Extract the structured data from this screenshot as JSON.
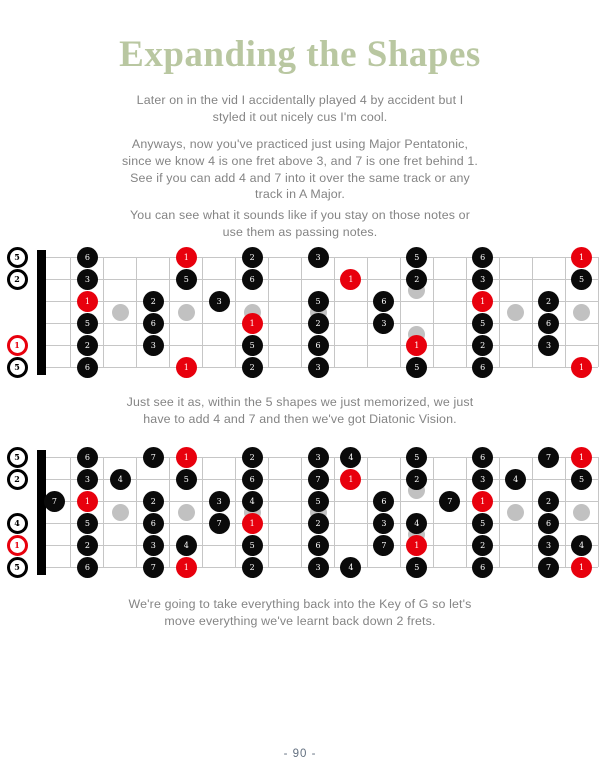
{
  "page": {
    "title": "Expanding the Shapes",
    "paragraphs": [
      "Later on in the vid I accidentally played 4 by accident but I\nstyled it out nicely cus I'm cool.",
      "Anyways, now you've practiced just using Major Pentatonic,\nsince we know 4 is one fret above 3, and 7 is one fret behind 1.\nSee if you can add 4 and 7 into it over the same track or any\ntrack in A Major.",
      "You can see what it sounds like if you stay on those notes or\nuse them as passing notes.",
      "Just see it as, within the 5 shapes we just memorized, we just\nhave to add 4 and 7 and then we've got Diatonic Vision.",
      "We're going to take everything back into the Key of G so let's\nmove everything we've learnt back down 2 frets."
    ],
    "page_number": "- 90 -"
  },
  "colors": {
    "title_green": "#b9c7a1",
    "body_gray": "#848484",
    "note_black": "#0a0a0a",
    "note_red": "#e8000d",
    "inlay_gray": "#c1c1c1",
    "line_gray": "#c6c6c6",
    "page_number_slate": "#637080"
  },
  "fretboards": [
    {
      "name": "A Major Pentatonic across full neck",
      "frets": 17,
      "strings": 6,
      "inlays": [
        [
          3,
          "mid"
        ],
        [
          5,
          "mid"
        ],
        [
          7,
          "mid"
        ],
        [
          9,
          "mid"
        ],
        [
          12,
          "double"
        ],
        [
          15,
          "mid"
        ],
        [
          17,
          "mid"
        ]
      ],
      "open_notes": [
        [
          1,
          "5",
          0
        ],
        [
          2,
          "2",
          0
        ],
        [
          5,
          "1",
          1
        ],
        [
          6,
          "5",
          0
        ]
      ],
      "notes": [
        [
          1,
          2,
          "6",
          0
        ],
        [
          2,
          2,
          "3",
          0
        ],
        [
          3,
          2,
          "1",
          1
        ],
        [
          4,
          2,
          "5",
          0
        ],
        [
          5,
          2,
          "2",
          0
        ],
        [
          6,
          2,
          "6",
          0
        ],
        [
          3,
          4,
          "2",
          0
        ],
        [
          4,
          4,
          "6",
          0
        ],
        [
          5,
          4,
          "3",
          0
        ],
        [
          1,
          5,
          "1",
          1
        ],
        [
          2,
          5,
          "5",
          0
        ],
        [
          6,
          5,
          "1",
          1
        ],
        [
          3,
          6,
          "3",
          0
        ],
        [
          1,
          7,
          "2",
          0
        ],
        [
          2,
          7,
          "6",
          0
        ],
        [
          4,
          7,
          "1",
          1
        ],
        [
          5,
          7,
          "5",
          0
        ],
        [
          6,
          7,
          "2",
          0
        ],
        [
          1,
          9,
          "3",
          0
        ],
        [
          3,
          9,
          "5",
          0
        ],
        [
          4,
          9,
          "2",
          0
        ],
        [
          5,
          9,
          "6",
          0
        ],
        [
          6,
          9,
          "3",
          0
        ],
        [
          2,
          10,
          "1",
          1
        ],
        [
          3,
          11,
          "6",
          0
        ],
        [
          4,
          11,
          "3",
          0
        ],
        [
          1,
          12,
          "5",
          0
        ],
        [
          2,
          12,
          "2",
          0
        ],
        [
          5,
          12,
          "1",
          1
        ],
        [
          6,
          12,
          "5",
          0
        ],
        [
          1,
          14,
          "6",
          0
        ],
        [
          2,
          14,
          "3",
          0
        ],
        [
          3,
          14,
          "1",
          1
        ],
        [
          4,
          14,
          "5",
          0
        ],
        [
          5,
          14,
          "2",
          0
        ],
        [
          6,
          14,
          "6",
          0
        ],
        [
          3,
          16,
          "2",
          0
        ],
        [
          4,
          16,
          "6",
          0
        ],
        [
          5,
          16,
          "3",
          0
        ],
        [
          1,
          17,
          "1",
          1
        ],
        [
          2,
          17,
          "5",
          0
        ],
        [
          6,
          17,
          "1",
          1
        ]
      ]
    },
    {
      "name": "A Major scale with 4 and 7 added across full neck",
      "frets": 17,
      "strings": 6,
      "inlays": [
        [
          3,
          "mid"
        ],
        [
          5,
          "mid"
        ],
        [
          7,
          "mid"
        ],
        [
          9,
          "mid"
        ],
        [
          12,
          "double"
        ],
        [
          15,
          "mid"
        ],
        [
          17,
          "mid"
        ]
      ],
      "open_notes": [
        [
          1,
          "5",
          0
        ],
        [
          2,
          "2",
          0
        ],
        [
          4,
          "4",
          0
        ],
        [
          5,
          "1",
          1
        ],
        [
          6,
          "5",
          0
        ]
      ],
      "notes": [
        [
          3,
          1,
          "7",
          0
        ],
        [
          1,
          2,
          "6",
          0
        ],
        [
          2,
          2,
          "3",
          0
        ],
        [
          3,
          2,
          "1",
          1
        ],
        [
          4,
          2,
          "5",
          0
        ],
        [
          5,
          2,
          "2",
          0
        ],
        [
          6,
          2,
          "6",
          0
        ],
        [
          2,
          3,
          "4",
          0
        ],
        [
          1,
          4,
          "7",
          0
        ],
        [
          3,
          4,
          "2",
          0
        ],
        [
          4,
          4,
          "6",
          0
        ],
        [
          5,
          4,
          "3",
          0
        ],
        [
          6,
          4,
          "7",
          0
        ],
        [
          1,
          5,
          "1",
          1
        ],
        [
          2,
          5,
          "5",
          0
        ],
        [
          5,
          5,
          "4",
          0
        ],
        [
          6,
          5,
          "1",
          1
        ],
        [
          3,
          6,
          "3",
          0
        ],
        [
          4,
          6,
          "7",
          0
        ],
        [
          1,
          7,
          "2",
          0
        ],
        [
          2,
          7,
          "6",
          0
        ],
        [
          3,
          7,
          "4",
          0
        ],
        [
          4,
          7,
          "1",
          1
        ],
        [
          5,
          7,
          "5",
          0
        ],
        [
          6,
          7,
          "2",
          0
        ],
        [
          1,
          9,
          "3",
          0
        ],
        [
          2,
          9,
          "7",
          0
        ],
        [
          3,
          9,
          "5",
          0
        ],
        [
          4,
          9,
          "2",
          0
        ],
        [
          5,
          9,
          "6",
          0
        ],
        [
          6,
          9,
          "3",
          0
        ],
        [
          1,
          10,
          "4",
          0
        ],
        [
          2,
          10,
          "1",
          1
        ],
        [
          6,
          10,
          "4",
          0
        ],
        [
          3,
          11,
          "6",
          0
        ],
        [
          4,
          11,
          "3",
          0
        ],
        [
          5,
          11,
          "7",
          0
        ],
        [
          1,
          12,
          "5",
          0
        ],
        [
          2,
          12,
          "2",
          0
        ],
        [
          4,
          12,
          "4",
          0
        ],
        [
          5,
          12,
          "1",
          1
        ],
        [
          6,
          12,
          "5",
          0
        ],
        [
          3,
          13,
          "7",
          0
        ],
        [
          1,
          14,
          "6",
          0
        ],
        [
          2,
          14,
          "3",
          0
        ],
        [
          3,
          14,
          "1",
          1
        ],
        [
          4,
          14,
          "5",
          0
        ],
        [
          5,
          14,
          "2",
          0
        ],
        [
          6,
          14,
          "6",
          0
        ],
        [
          2,
          15,
          "4",
          0
        ],
        [
          1,
          16,
          "7",
          0
        ],
        [
          3,
          16,
          "2",
          0
        ],
        [
          4,
          16,
          "6",
          0
        ],
        [
          5,
          16,
          "3",
          0
        ],
        [
          6,
          16,
          "7",
          0
        ],
        [
          1,
          17,
          "1",
          1
        ],
        [
          2,
          17,
          "5",
          0
        ],
        [
          5,
          17,
          "4",
          0
        ],
        [
          6,
          17,
          "1",
          1
        ]
      ]
    }
  ]
}
